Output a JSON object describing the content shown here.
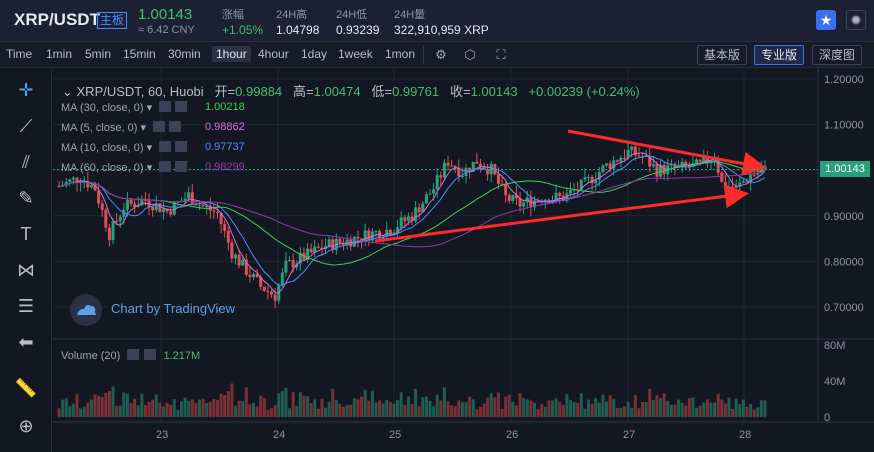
{
  "header": {
    "pair": "XRP/USDT",
    "badge": "主板",
    "price": "1.00143",
    "cny": "≈ 6.42 CNY",
    "change_label": "涨幅",
    "change_value": "+1.05%",
    "high_label": "24H高",
    "high_value": "1.04798",
    "low_label": "24H低",
    "low_value": "0.93239",
    "vol_label": "24H量",
    "vol_value": "322,910,959 XRP"
  },
  "toolbar": {
    "timeframes": [
      "Time",
      "1min",
      "5min",
      "15min",
      "30min",
      "1hour",
      "4hour",
      "1day",
      "1week",
      "1mon"
    ],
    "active_timeframe": "1hour",
    "versions": [
      "基本版",
      "专业版",
      "深度图"
    ],
    "active_version": "专业版"
  },
  "legend": {
    "title": "XRP/USDT, 60, Huobi",
    "open_label": "开=",
    "open": "0.99884",
    "high_label": "高=",
    "high": "1.00474",
    "low_label": "低=",
    "low": "0.99761",
    "close_label": "收=",
    "close": "1.00143",
    "change": "+0.00239 (+0.24%)"
  },
  "ma_lines": [
    {
      "label": "MA (30, close, 0)",
      "value": "1.00218",
      "color": "#39d353"
    },
    {
      "label": "MA (5, close, 0)",
      "value": "0.98862",
      "color": "#d46fd6"
    },
    {
      "label": "MA (10, close, 0)",
      "value": "0.97737",
      "color": "#4a8cff"
    },
    {
      "label": "MA (60, close, 0)",
      "value": "0.98299",
      "color": "#8e3aa8"
    }
  ],
  "watermark": "Chart by TradingView",
  "volume": {
    "label": "Volume (20)",
    "value": "1.217M"
  },
  "price_axis": [
    "1.20000",
    "1.10000",
    "1.00143",
    "0.90000",
    "0.80000",
    "0.70000"
  ],
  "volume_axis": [
    "80M",
    "40M",
    "0"
  ],
  "time_axis": [
    "23",
    "24",
    "25",
    "26",
    "27",
    "28"
  ],
  "colors": {
    "up": "#26a17b",
    "down": "#e0505a",
    "arrow": "#ff2a2a",
    "accent": "#3a6ff0"
  }
}
